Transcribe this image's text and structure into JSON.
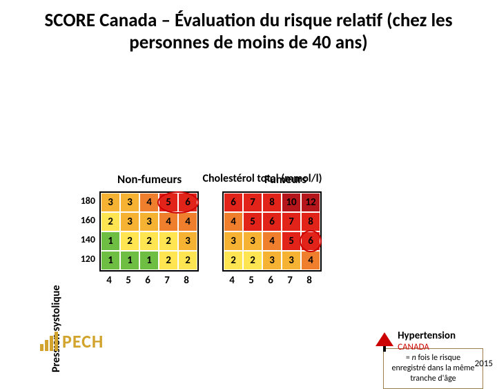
{
  "title": "SCORE Canada – Évaluation du risque relatif (chez les personnes de moins de 40 ans)",
  "header_nonsmokers": "Non-fumeurs",
  "header_smokers": "Fumeurs",
  "y_axis": "Pression systolique",
  "x_axis": "Cholestérol total (mmol/l)",
  "row_labels": [
    "180",
    "160",
    "140",
    "120"
  ],
  "col_labels": [
    "4",
    "5",
    "6",
    "7",
    "8"
  ],
  "nonsmokers": {
    "values": [
      [
        3,
        3,
        4,
        5,
        6
      ],
      [
        2,
        3,
        3,
        4,
        4
      ],
      [
        1,
        2,
        2,
        2,
        3
      ],
      [
        1,
        1,
        1,
        2,
        2
      ]
    ],
    "colors": [
      [
        "#f6b233",
        "#f6b233",
        "#f07f2d",
        "#e2231a",
        "#e2231a"
      ],
      [
        "#ffe552",
        "#f6b233",
        "#f6b233",
        "#f07f2d",
        "#f07f2d"
      ],
      [
        "#6fbe44",
        "#ffe552",
        "#ffe552",
        "#ffe552",
        "#f6b233"
      ],
      [
        "#6fbe44",
        "#6fbe44",
        "#6fbe44",
        "#ffe552",
        "#ffe552"
      ]
    ]
  },
  "smokers": {
    "values": [
      [
        6,
        7,
        8,
        10,
        12
      ],
      [
        4,
        5,
        6,
        7,
        8
      ],
      [
        3,
        3,
        4,
        5,
        6
      ],
      [
        2,
        2,
        3,
        3,
        4
      ]
    ],
    "colors": [
      [
        "#e2231a",
        "#e2231a",
        "#e2231a",
        "#b5161b",
        "#b5161b"
      ],
      [
        "#f07f2d",
        "#e2231a",
        "#e2231a",
        "#e2231a",
        "#e2231a"
      ],
      [
        "#f6b233",
        "#f6b233",
        "#f07f2d",
        "#e2231a",
        "#e2231a"
      ],
      [
        "#ffe552",
        "#ffe552",
        "#f6b233",
        "#f6b233",
        "#f07f2d"
      ]
    ]
  },
  "circle_ns": {
    "row": 0,
    "colStart": 3,
    "colEnd": 4
  },
  "circle_s": {
    "row": 2,
    "colStart": 4,
    "colEnd": 4
  },
  "note_prefix": "= ",
  "note_n": "n",
  "note_rest": " fois le risque enregistré dans la même tranche d'âge",
  "pech_label": "PECH",
  "hc_hyp": "Hypertension",
  "hc_can": "CANADA",
  "year": "2015",
  "cell_font_color": "#000000",
  "border_color": "#ffffff"
}
